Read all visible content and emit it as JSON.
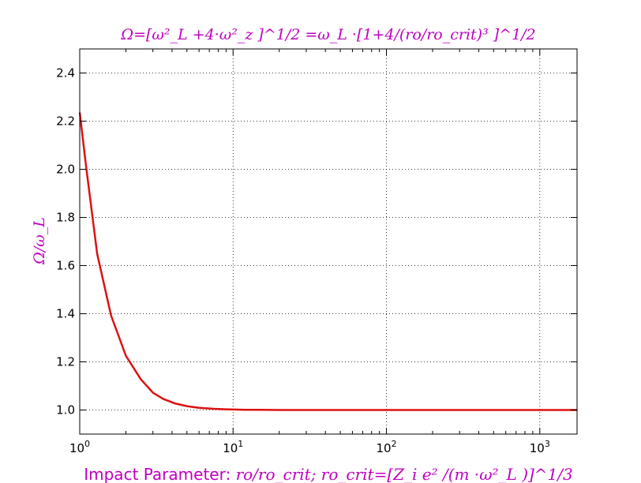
{
  "chart_data": {
    "type": "line",
    "title": "Ω=[ω²_L +4·ω²_z ]^1/2 =ω_L ·[1+4/(ro/ro_crit)³ ]^1/2",
    "ylabel": "Ω/ω_L",
    "xlabel": {
      "text": "Impact Parameter: ",
      "math": "ro/ro_crit; ro_crit=[Z_i e² /(m ·ω²_L )]^1/3"
    },
    "xscale": "log",
    "xlim": [
      1,
      1750
    ],
    "ylim": [
      0.9,
      2.5
    ],
    "grid": true,
    "label_color": "#bf00bf",
    "x_ticks": [
      {
        "value": 1,
        "base": "10",
        "exp": "0"
      },
      {
        "value": 10,
        "base": "10",
        "exp": "1"
      },
      {
        "value": 100,
        "base": "10",
        "exp": "2"
      },
      {
        "value": 1000,
        "base": "10",
        "exp": "3"
      }
    ],
    "y_ticks": [
      {
        "value": 1.0,
        "label": "1.0"
      },
      {
        "value": 1.2,
        "label": "1.2"
      },
      {
        "value": 1.4,
        "label": "1.4"
      },
      {
        "value": 1.6,
        "label": "1.6"
      },
      {
        "value": 1.8,
        "label": "1.8"
      },
      {
        "value": 2.0,
        "label": "2.0"
      },
      {
        "value": 2.2,
        "label": "2.2"
      },
      {
        "value": 2.4,
        "label": "2.4"
      }
    ],
    "series": [
      {
        "color": "#dd1111",
        "x": [
          1.0,
          1.1,
          1.3,
          1.6,
          2.0,
          2.5,
          3.0,
          3.5,
          4.2,
          5.0,
          6.0,
          7.5,
          9.0,
          12,
          15,
          20,
          30,
          50,
          100,
          200,
          500,
          1000,
          1750
        ],
        "y": [
          2.236,
          2.012,
          1.648,
          1.393,
          1.225,
          1.128,
          1.072,
          1.046,
          1.027,
          1.016,
          1.009,
          1.005,
          1.003,
          1.001,
          1.001,
          1.0,
          1.0,
          1.0,
          1.0,
          1.0,
          1.0,
          1.0,
          1.0
        ]
      }
    ]
  }
}
